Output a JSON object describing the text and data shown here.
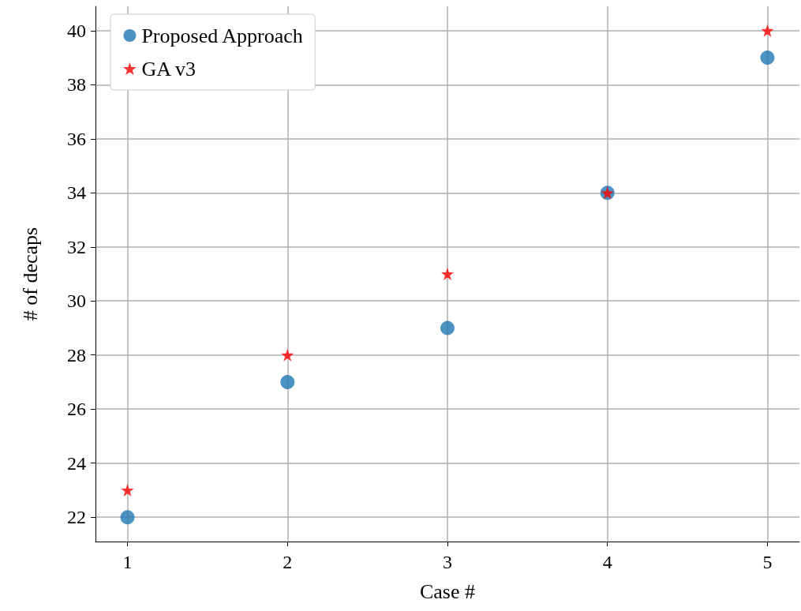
{
  "chart_data": {
    "type": "scatter",
    "xlabel": "Case #",
    "ylabel": "# of decaps",
    "x": [
      1,
      2,
      3,
      4,
      5
    ],
    "series": [
      {
        "name": "Proposed Approach",
        "color": "#1f77b4",
        "marker": "circle",
        "values": [
          22,
          27,
          29,
          34,
          39
        ]
      },
      {
        "name": "GA v3",
        "color": "#ff0000",
        "marker": "star",
        "values": [
          23,
          28,
          31,
          34,
          40
        ]
      }
    ],
    "xlim": [
      0.8,
      5.2
    ],
    "xticks": [
      1,
      2,
      3,
      4,
      5
    ],
    "ylim": [
      21.1,
      40.9
    ],
    "yticks": [
      22,
      24,
      26,
      28,
      30,
      32,
      34,
      36,
      38,
      40
    ],
    "grid": true,
    "legend": "top left"
  }
}
